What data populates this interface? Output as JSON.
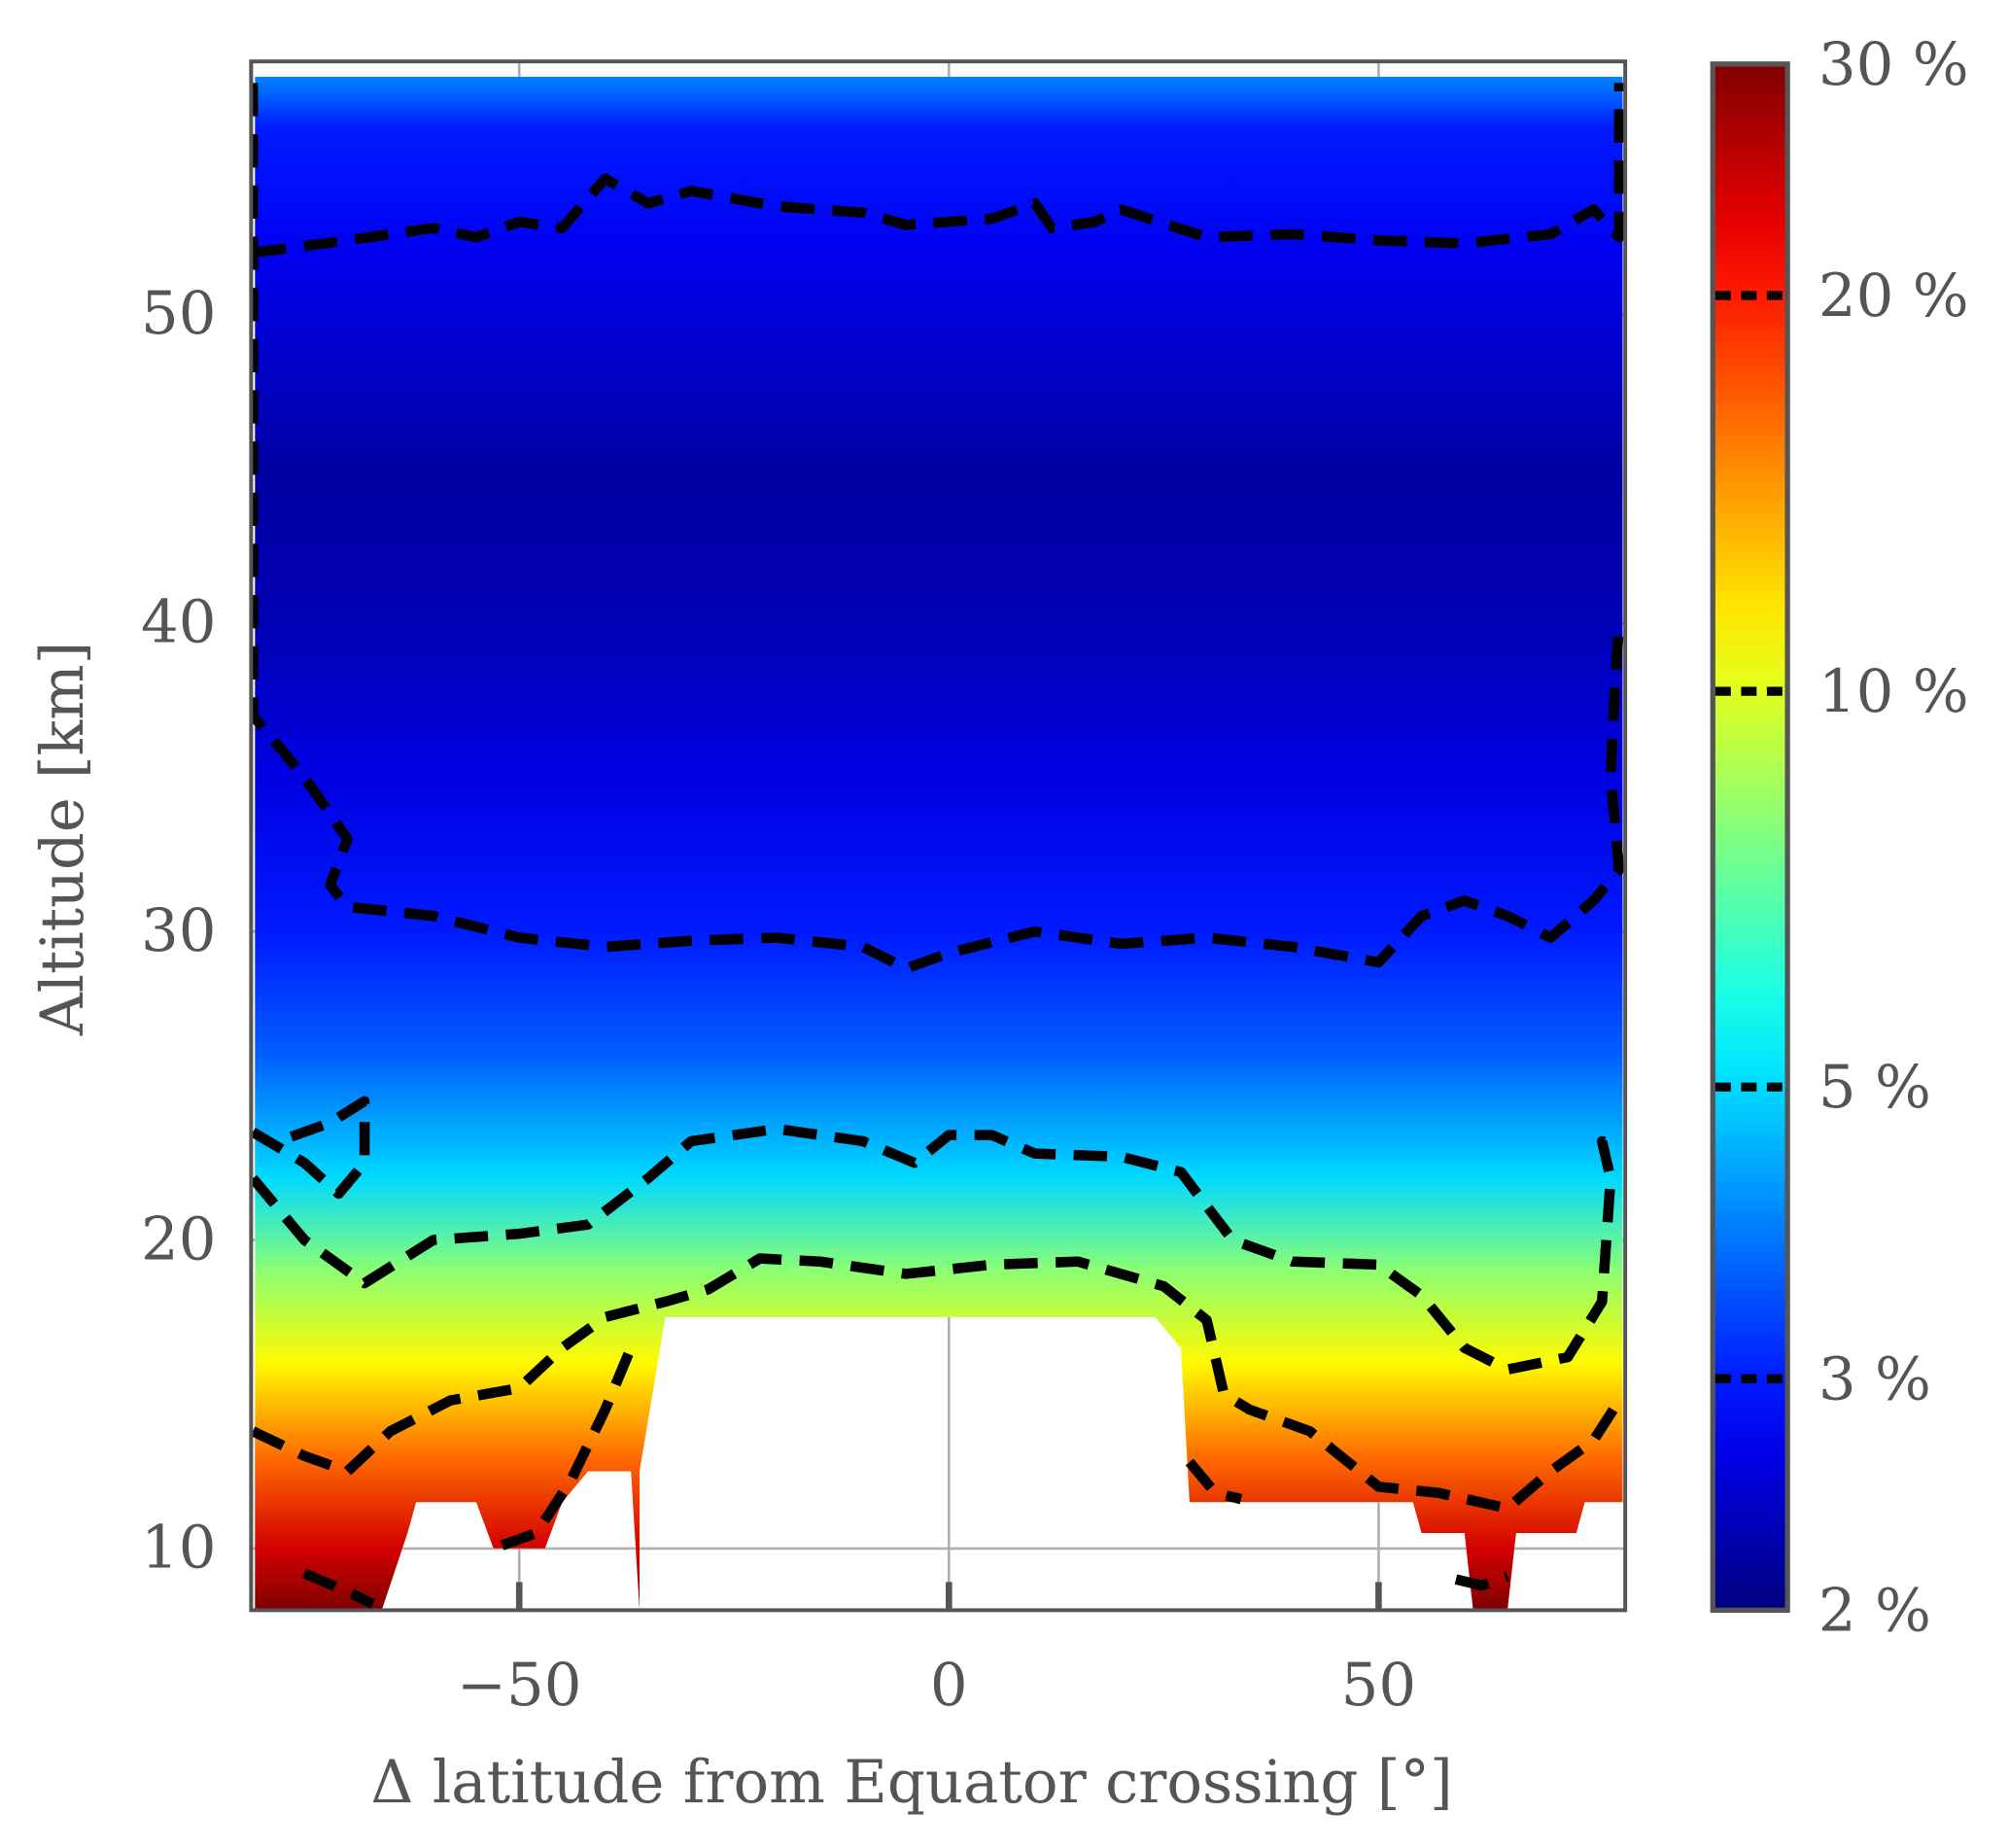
{
  "chart_data": {
    "type": "heatmap",
    "title": "",
    "xlabel": "Δ latitude from Equator crossing [°]",
    "ylabel": "Altitude [km]",
    "xlim": [
      -81.2,
      78.7
    ],
    "ylim": [
      8.0,
      58.2
    ],
    "xticks": [
      -50,
      0,
      50
    ],
    "xtick_labels": [
      "−50",
      "0",
      "50"
    ],
    "yticks": [
      10,
      20,
      30,
      40,
      50
    ],
    "ytick_labels": [
      "10",
      "20",
      "30",
      "40",
      "50"
    ],
    "grid": true,
    "colorbar": {
      "scale": "log",
      "range": [
        2,
        30
      ],
      "ticks": [
        2,
        3,
        5,
        10,
        20,
        30
      ],
      "tick_labels": [
        "2 %",
        "3 %",
        "5 %",
        "10 %",
        "20 %",
        "30 %"
      ],
      "contour_levels": [
        3,
        5,
        10,
        20
      ],
      "colormap": "jet",
      "placement": "right"
    },
    "field_profile_by_altitude": [
      {
        "alt": 58,
        "value": 4.2
      },
      {
        "alt": 56,
        "value": 3.0
      },
      {
        "alt": 52,
        "value": 2.7
      },
      {
        "alt": 45,
        "value": 2.2
      },
      {
        "alt": 40,
        "value": 2.3
      },
      {
        "alt": 35,
        "value": 2.6
      },
      {
        "alt": 30,
        "value": 3.0
      },
      {
        "alt": 26,
        "value": 3.6
      },
      {
        "alt": 22,
        "value": 5.0
      },
      {
        "alt": 19,
        "value": 8.0
      },
      {
        "alt": 16,
        "value": 11.0
      },
      {
        "alt": 13,
        "value": 16.0
      },
      {
        "alt": 10,
        "value": 24.0
      },
      {
        "alt": 8,
        "value": 30.0
      }
    ],
    "contours": [
      {
        "level": 3,
        "points": [
          [
            -81,
            52.0
          ],
          [
            -70,
            52.4
          ],
          [
            -60,
            52.8
          ],
          [
            -55,
            52.5
          ],
          [
            -50,
            53.0
          ],
          [
            -45,
            52.8
          ],
          [
            -40,
            54.4
          ],
          [
            -35,
            53.6
          ],
          [
            -30,
            54.0
          ],
          [
            -20,
            53.5
          ],
          [
            -10,
            53.3
          ],
          [
            -5,
            52.9
          ],
          [
            5,
            53.1
          ],
          [
            10,
            53.6
          ],
          [
            12,
            52.8
          ],
          [
            17,
            53.0
          ],
          [
            20,
            53.4
          ],
          [
            30,
            52.5
          ],
          [
            40,
            52.6
          ],
          [
            50,
            52.4
          ],
          [
            60,
            52.3
          ],
          [
            70,
            52.6
          ],
          [
            75,
            53.4
          ],
          [
            78,
            52.5
          ],
          [
            78,
            57.5
          ]
        ]
      },
      {
        "level": 3,
        "points": [
          [
            -81,
            57.5
          ],
          [
            -81,
            37
          ],
          [
            -75,
            35
          ],
          [
            -70,
            33
          ],
          [
            -72,
            31.5
          ],
          [
            -70,
            30.8
          ],
          [
            -60,
            30.5
          ],
          [
            -50,
            29.8
          ],
          [
            -40,
            29.5
          ],
          [
            -30,
            29.7
          ],
          [
            -20,
            29.8
          ],
          [
            -10,
            29.5
          ],
          [
            -5,
            28.8
          ],
          [
            0,
            29.3
          ],
          [
            10,
            30.0
          ],
          [
            20,
            29.6
          ],
          [
            30,
            29.8
          ],
          [
            40,
            29.5
          ],
          [
            50,
            29.0
          ],
          [
            55,
            30.5
          ],
          [
            60,
            31.0
          ],
          [
            65,
            30.5
          ],
          [
            70,
            29.8
          ],
          [
            75,
            31.0
          ],
          [
            78,
            32
          ],
          [
            77,
            35
          ],
          [
            77.5,
            38
          ],
          [
            78,
            40
          ]
        ]
      },
      {
        "level": 5,
        "points": [
          [
            -81,
            22
          ],
          [
            -75,
            20
          ],
          [
            -68,
            18.6
          ],
          [
            -60,
            20
          ],
          [
            -50,
            20.2
          ],
          [
            -42,
            20.5
          ],
          [
            -35,
            22
          ],
          [
            -30,
            23.2
          ],
          [
            -20,
            23.6
          ],
          [
            -10,
            23.2
          ],
          [
            -4,
            22.5
          ],
          [
            0,
            23.4
          ],
          [
            5,
            23.4
          ],
          [
            10,
            22.8
          ],
          [
            20,
            22.7
          ],
          [
            27,
            22.2
          ],
          [
            33,
            20.0
          ],
          [
            40,
            19.3
          ],
          [
            50,
            19.2
          ],
          [
            55,
            18.2
          ],
          [
            60,
            16.5
          ],
          [
            65,
            15.8
          ],
          [
            72,
            16.2
          ],
          [
            76,
            18
          ],
          [
            77,
            22
          ],
          [
            76,
            23.2
          ],
          [
            78,
            23
          ]
        ]
      },
      {
        "level": 5,
        "points": [
          [
            -81,
            23.5
          ],
          [
            -75,
            22.5
          ],
          [
            -71,
            21.5
          ],
          [
            -68,
            22.5
          ],
          [
            -68,
            24.5
          ],
          [
            -72,
            23.8
          ],
          [
            -78,
            23.2
          ]
        ]
      },
      {
        "level": 10,
        "points": [
          [
            -81,
            13.8
          ],
          [
            -75,
            13
          ],
          [
            -70,
            12.5
          ],
          [
            -65,
            13.8
          ],
          [
            -58,
            14.8
          ],
          [
            -50,
            15.2
          ],
          [
            -45,
            16.5
          ],
          [
            -40,
            17.5
          ],
          [
            -33,
            18.0
          ],
          [
            -28,
            18.4
          ],
          [
            -22,
            19.4
          ],
          [
            -15,
            19.3
          ],
          [
            -5,
            18.9
          ],
          [
            5,
            19.2
          ],
          [
            15,
            19.3
          ],
          [
            25,
            18.5
          ],
          [
            30,
            17.4
          ],
          [
            32,
            15.0
          ],
          [
            35,
            14.5
          ],
          [
            42,
            13.8
          ],
          [
            50,
            12.0
          ],
          [
            57,
            11.8
          ],
          [
            65,
            11.3
          ],
          [
            70,
            12.5
          ],
          [
            75,
            13.5
          ],
          [
            78,
            14.8
          ]
        ]
      },
      {
        "level": 20,
        "points": [
          [
            -75,
            9.2
          ],
          [
            -70,
            8.6
          ],
          [
            -67,
            8.2
          ]
        ]
      },
      {
        "level": 20,
        "points": [
          [
            -52,
            10.1
          ],
          [
            -48,
            10.5
          ],
          [
            -44,
            12.2
          ],
          [
            -40,
            14.5
          ],
          [
            -37,
            16.5
          ]
        ]
      },
      {
        "level": 20,
        "points": [
          [
            28,
            12.8
          ],
          [
            31,
            11.8
          ],
          [
            34,
            11.6
          ]
        ]
      },
      {
        "level": 20,
        "points": [
          [
            59,
            9.0
          ],
          [
            62,
            8.8
          ],
          [
            65,
            9.1
          ]
        ]
      }
    ],
    "missing_regions": [
      [
        [
          -36,
          8
        ],
        [
          -36,
          12.5
        ],
        [
          -33,
          17.5
        ],
        [
          24,
          17.5
        ],
        [
          27,
          16.5
        ],
        [
          28,
          11.5
        ],
        [
          54,
          11.5
        ],
        [
          55,
          10.5
        ],
        [
          60,
          10.5
        ],
        [
          61,
          8.0
        ],
        [
          65,
          8.0
        ],
        [
          66,
          10.5
        ],
        [
          73,
          10.5
        ],
        [
          74,
          11.5
        ],
        [
          78.7,
          11.5
        ],
        [
          78.7,
          8
        ]
      ],
      [
        [
          -66,
          8
        ],
        [
          -63,
          10.5
        ],
        [
          -62,
          11.5
        ],
        [
          -55,
          11.5
        ],
        [
          -53,
          10
        ],
        [
          -47,
          10
        ],
        [
          -45,
          11.5
        ],
        [
          -42,
          12.5
        ],
        [
          -37,
          12.5
        ],
        [
          -36,
          8
        ]
      ]
    ]
  }
}
